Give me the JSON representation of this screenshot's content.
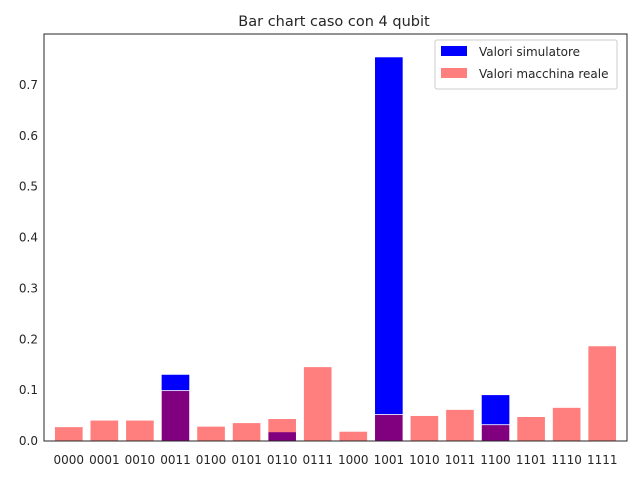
{
  "chart_data": {
    "type": "bar",
    "title": "Bar chart caso con 4 qubit",
    "xlabel": "",
    "ylabel": "",
    "ylim": [
      0,
      0.8
    ],
    "yticks": [
      0.0,
      0.1,
      0.2,
      0.3,
      0.4,
      0.5,
      0.6,
      0.7
    ],
    "ytick_labels": [
      "0.0",
      "0.1",
      "0.2",
      "0.3",
      "0.4",
      "0.5",
      "0.6",
      "0.7"
    ],
    "grid": false,
    "legend_position": "top-right",
    "categories": [
      "0000",
      "0001",
      "0010",
      "0011",
      "0100",
      "0101",
      "0110",
      "0111",
      "1000",
      "1001",
      "1010",
      "1011",
      "1100",
      "1101",
      "1110",
      "1111"
    ],
    "series": [
      {
        "name": "Valori simulatore",
        "color": "#0000ff",
        "alpha": 1.0,
        "values": [
          0,
          0,
          0,
          0.131,
          0,
          0,
          0.018,
          0,
          0,
          0.755,
          0,
          0,
          0.091,
          0,
          0,
          0
        ]
      },
      {
        "name": "Valori macchina reale",
        "color": "#ff0000",
        "alpha": 0.5,
        "values": [
          0.028,
          0.041,
          0.041,
          0.099,
          0.029,
          0.036,
          0.044,
          0.146,
          0.019,
          0.052,
          0.05,
          0.062,
          0.032,
          0.048,
          0.066,
          0.187
        ]
      }
    ]
  }
}
